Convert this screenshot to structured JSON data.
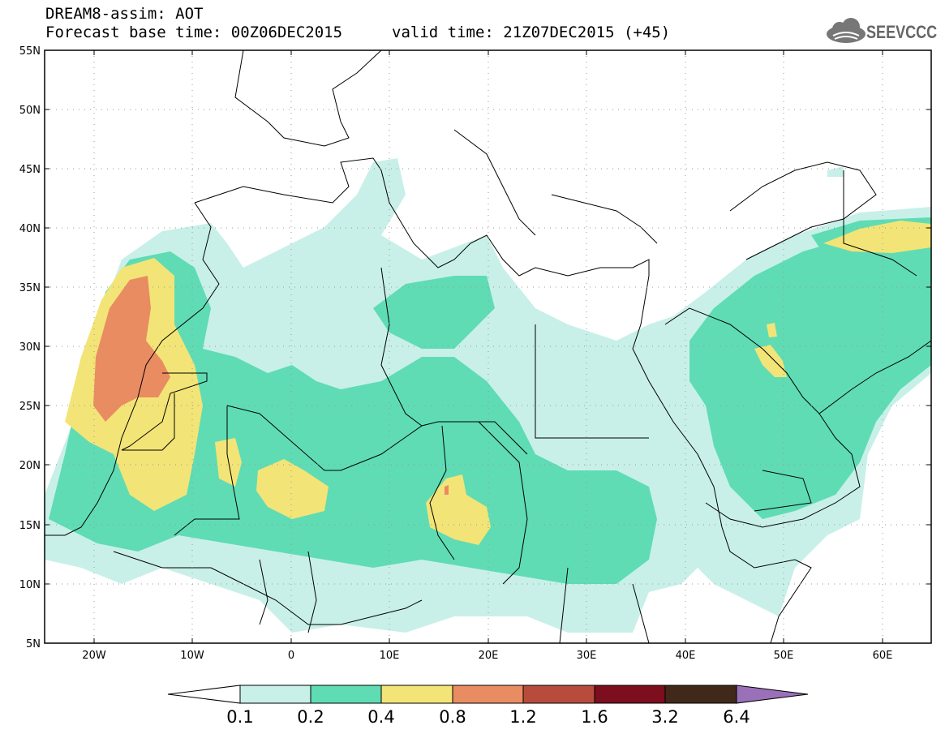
{
  "header": {
    "title": "DREAM8-assim: AOT",
    "base_time": "Forecast base time: 00Z06DEC2015",
    "valid_time": "valid time: 21Z07DEC2015 (+45)",
    "logo_text": "SEEVCCC"
  },
  "axes": {
    "lat_labels": [
      "55N",
      "50N",
      "45N",
      "40N",
      "35N",
      "30N",
      "25N",
      "20N",
      "15N",
      "10N",
      "5N"
    ],
    "lon_labels": [
      "20W",
      "10W",
      "0",
      "10E",
      "20E",
      "30E",
      "40E",
      "50E",
      "60E"
    ]
  },
  "colorbar": {
    "levels": [
      "0.1",
      "0.2",
      "0.4",
      "0.8",
      "1.2",
      "1.6",
      "3.2",
      "6.4"
    ],
    "colors": [
      "#c8f0e8",
      "#5fdcb4",
      "#f3e477",
      "#e98c62",
      "#b84c3c",
      "#7c0e1e",
      "#40281a",
      "#9a70b8"
    ],
    "under_color": "#ffffff"
  },
  "map_colors": {
    "background": "#ffffff",
    "border_lines": "#000000",
    "grid_dots": "#999999"
  }
}
